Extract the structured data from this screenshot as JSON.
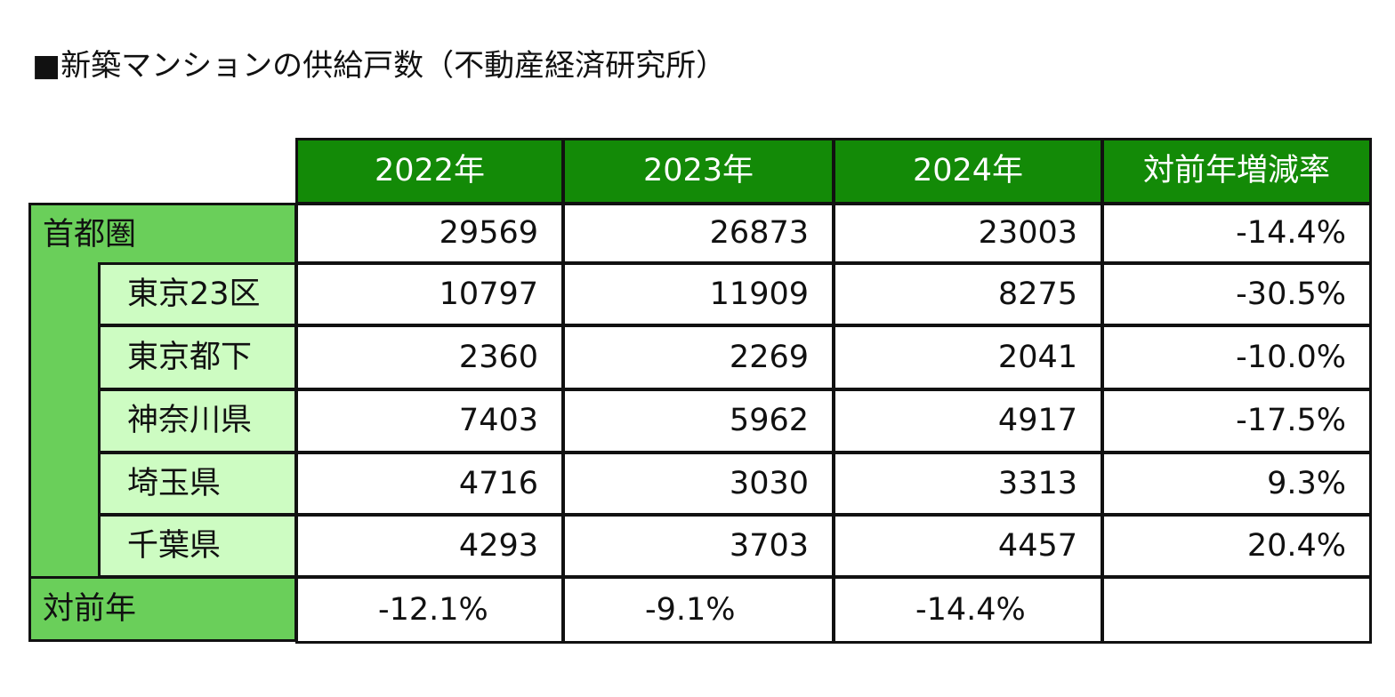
{
  "title": "■新築マンションの供給戸数（不動産経済研究所）",
  "colors": {
    "header_bg": "#138a07",
    "region_bg": "#6acf5a",
    "sub_bg": "#cdfcc2",
    "border": "#111111"
  },
  "chart_data": {
    "type": "table",
    "title": "■新築マンションの供給戸数（不動産経済研究所）",
    "columns": [
      "2022年",
      "2023年",
      "2024年",
      "対前年増減率"
    ],
    "rows": [
      {
        "label": "首都圏",
        "level": 0,
        "values": [
          "29569",
          "26873",
          "23003",
          "-14.4%"
        ]
      },
      {
        "label": "東京23区",
        "level": 1,
        "values": [
          "10797",
          "11909",
          "8275",
          "-30.5%"
        ]
      },
      {
        "label": "東京都下",
        "level": 1,
        "values": [
          "2360",
          "2269",
          "2041",
          "-10.0%"
        ]
      },
      {
        "label": "神奈川県",
        "level": 1,
        "values": [
          "7403",
          "5962",
          "4917",
          "-17.5%"
        ]
      },
      {
        "label": "埼玉県",
        "level": 1,
        "values": [
          "4716",
          "3030",
          "3313",
          "9.3%"
        ]
      },
      {
        "label": "千葉県",
        "level": 1,
        "values": [
          "4293",
          "3703",
          "4457",
          "20.4%"
        ]
      }
    ],
    "footer": {
      "label": "対前年",
      "values": [
        "-12.1%",
        "-9.1%",
        "-14.4%",
        ""
      ]
    }
  }
}
